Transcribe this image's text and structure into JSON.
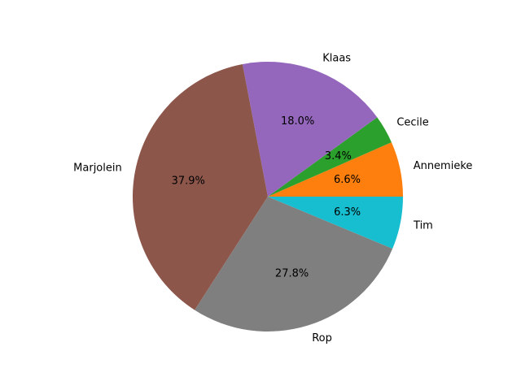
{
  "chart_data": {
    "type": "pie",
    "start_angle_deg": 0,
    "direction": "counterclockwise",
    "slices": [
      {
        "label": "Annemieke",
        "value": 6.6,
        "percent_label": "6.6%",
        "color": "#ff7f0e"
      },
      {
        "label": "Cecile",
        "value": 3.4,
        "percent_label": "3.4%",
        "color": "#2ca02c"
      },
      {
        "label": "Klaas",
        "value": 18.0,
        "percent_label": "18.0%",
        "color": "#9467bd"
      },
      {
        "label": "Marjolein",
        "value": 37.9,
        "percent_label": "37.9%",
        "color": "#8c564b"
      },
      {
        "label": "Rop",
        "value": 27.8,
        "percent_label": "27.8%",
        "color": "#7f7f7f"
      },
      {
        "label": "Tim",
        "value": 6.3,
        "percent_label": "6.3%",
        "color": "#17becf"
      }
    ]
  }
}
